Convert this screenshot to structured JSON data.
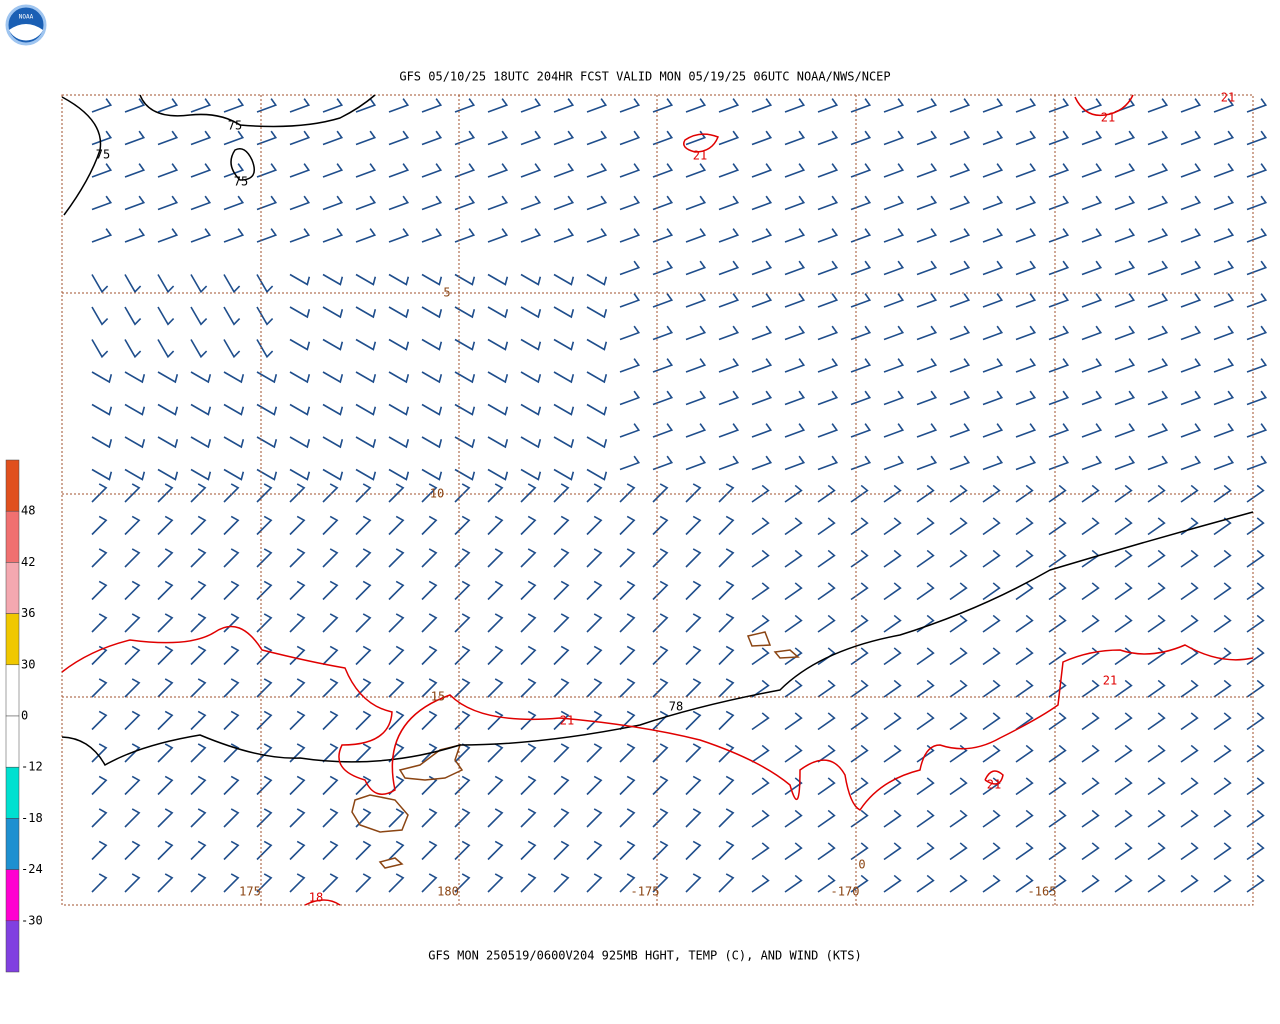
{
  "header": {
    "title": "GFS 05/10/25 18UTC 204HR FCST VALID MON 05/19/25 06UTC NOAA/NWS/NCEP",
    "logo": "NOAA"
  },
  "footer": {
    "caption": "GFS MON 250519/0600V204 925MB HGHT, TEMP (C), AND WIND (KTS)"
  },
  "colorbar": {
    "labels": [
      "48",
      "42",
      "36",
      "30",
      "0",
      "-12",
      "-18",
      "-24",
      "-30"
    ]
  },
  "latitude_labels": [
    "5",
    "10",
    "15"
  ],
  "longitude_labels": [
    "175",
    "180",
    "-175",
    "-170",
    "-165"
  ],
  "height_labels": [
    "75",
    "75",
    "75",
    "78"
  ],
  "temperature_labels": [
    "21",
    "21",
    "21",
    "21",
    "21",
    "21",
    "18",
    "0"
  ]
}
